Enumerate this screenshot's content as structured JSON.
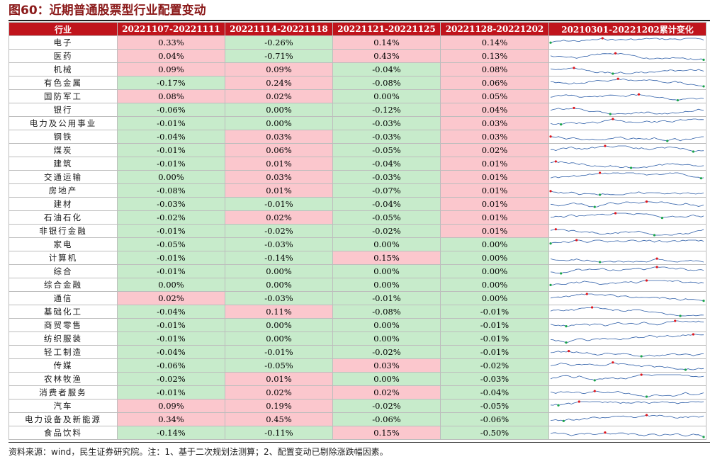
{
  "title": "图60：近期普通股票型行业配置变动",
  "footer": "资料来源：wind，民生证券研究院。注：1、基于二次规划法测算；2、配置变动已剔除涨跌幅因素。",
  "colors": {
    "header_bg": "#c0141c",
    "positive_bg": "#fbc7cd",
    "negative_bg": "#c7ebcb",
    "sparkline": "#2f5fa8",
    "max_marker": "#e0151c",
    "min_marker": "#1aa54a"
  },
  "chart_data": {
    "type": "table",
    "columns": [
      "行业",
      "20221107-20221111",
      "20221114-20221118",
      "20221121-20221125",
      "20221128-20221202",
      "20210301-20221202累计变化"
    ],
    "rows": [
      {
        "industry": "电子",
        "values": [
          "0.33%",
          "-0.26%",
          "0.14%",
          "0.14%"
        ]
      },
      {
        "industry": "医药",
        "values": [
          "0.04%",
          "-0.71%",
          "0.43%",
          "0.13%"
        ]
      },
      {
        "industry": "机械",
        "values": [
          "0.09%",
          "0.09%",
          "-0.04%",
          "0.08%"
        ]
      },
      {
        "industry": "有色金属",
        "values": [
          "-0.17%",
          "0.24%",
          "-0.08%",
          "0.06%"
        ]
      },
      {
        "industry": "国防军工",
        "values": [
          "0.08%",
          "0.02%",
          "0.00%",
          "0.05%"
        ]
      },
      {
        "industry": "银行",
        "values": [
          "-0.06%",
          "0.00%",
          "-0.12%",
          "0.04%"
        ]
      },
      {
        "industry": "电力及公用事业",
        "values": [
          "-0.01%",
          "0.00%",
          "-0.03%",
          "0.03%"
        ]
      },
      {
        "industry": "钢铁",
        "values": [
          "-0.04%",
          "0.03%",
          "-0.03%",
          "0.03%"
        ]
      },
      {
        "industry": "煤炭",
        "values": [
          "-0.01%",
          "0.06%",
          "-0.05%",
          "0.02%"
        ]
      },
      {
        "industry": "建筑",
        "values": [
          "-0.01%",
          "0.01%",
          "-0.04%",
          "0.01%"
        ]
      },
      {
        "industry": "交通运输",
        "values": [
          "0.00%",
          "0.03%",
          "-0.03%",
          "0.01%"
        ]
      },
      {
        "industry": "房地产",
        "values": [
          "-0.08%",
          "0.01%",
          "-0.07%",
          "0.01%"
        ]
      },
      {
        "industry": "建材",
        "values": [
          "-0.03%",
          "-0.01%",
          "-0.04%",
          "0.01%"
        ]
      },
      {
        "industry": "石油石化",
        "values": [
          "-0.02%",
          "0.02%",
          "-0.05%",
          "0.01%"
        ]
      },
      {
        "industry": "非银行金融",
        "values": [
          "-0.01%",
          "-0.02%",
          "-0.02%",
          "0.01%"
        ]
      },
      {
        "industry": "家电",
        "values": [
          "-0.05%",
          "-0.03%",
          "0.00%",
          "0.00%"
        ]
      },
      {
        "industry": "计算机",
        "values": [
          "-0.01%",
          "-0.14%",
          "0.15%",
          "0.00%"
        ]
      },
      {
        "industry": "综合",
        "values": [
          "-0.01%",
          "0.00%",
          "0.00%",
          "0.00%"
        ]
      },
      {
        "industry": "综合金融",
        "values": [
          "0.00%",
          "0.00%",
          "0.00%",
          "0.00%"
        ]
      },
      {
        "industry": "通信",
        "values": [
          "0.02%",
          "-0.03%",
          "-0.01%",
          "0.00%"
        ]
      },
      {
        "industry": "基础化工",
        "values": [
          "-0.04%",
          "0.11%",
          "-0.08%",
          "-0.01%"
        ]
      },
      {
        "industry": "商贸零售",
        "values": [
          "-0.01%",
          "0.00%",
          "0.00%",
          "-0.01%"
        ]
      },
      {
        "industry": "纺织服装",
        "values": [
          "-0.01%",
          "0.00%",
          "0.00%",
          "-0.01%"
        ]
      },
      {
        "industry": "轻工制造",
        "values": [
          "-0.04%",
          "-0.01%",
          "-0.02%",
          "-0.01%"
        ]
      },
      {
        "industry": "传媒",
        "values": [
          "-0.06%",
          "-0.05%",
          "0.03%",
          "-0.02%"
        ]
      },
      {
        "industry": "农林牧渔",
        "values": [
          "-0.02%",
          "0.01%",
          "0.00%",
          "-0.03%"
        ]
      },
      {
        "industry": "消费者服务",
        "values": [
          "-0.01%",
          "0.02%",
          "0.02%",
          "-0.04%"
        ]
      },
      {
        "industry": "汽车",
        "values": [
          "0.09%",
          "0.19%",
          "-0.02%",
          "-0.05%"
        ]
      },
      {
        "industry": "电力设备及新能源",
        "values": [
          "0.34%",
          "0.45%",
          "-0.06%",
          "-0.06%"
        ]
      },
      {
        "industry": "食品饮料",
        "values": [
          "-0.14%",
          "-0.11%",
          "0.15%",
          "-0.50%"
        ]
      }
    ],
    "cell_fill_rule": "positive -> pink, zero or negative -> green"
  }
}
